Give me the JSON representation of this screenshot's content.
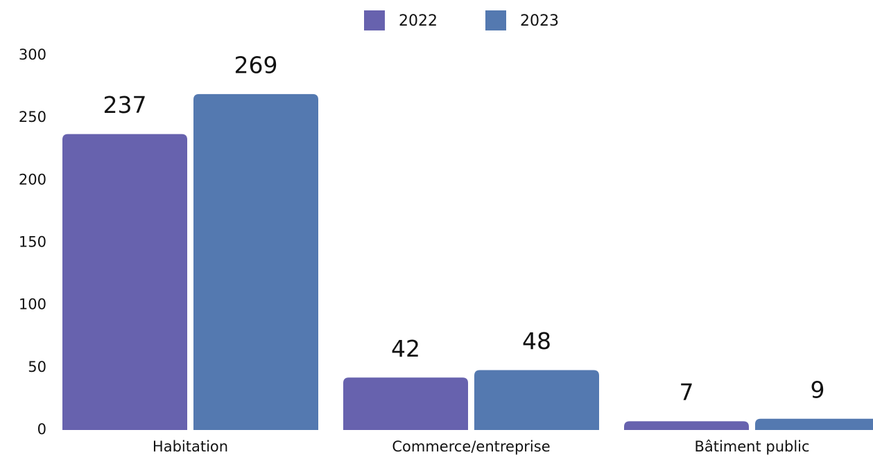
{
  "chart_data": {
    "type": "bar",
    "categories": [
      "Habitation",
      "Commerce/entreprise",
      "Bâtiment public"
    ],
    "series": [
      {
        "name": "2022",
        "color": "#6762ae",
        "values": [
          237,
          42,
          7
        ]
      },
      {
        "name": "2023",
        "color": "#5479b0",
        "values": [
          269,
          48,
          9
        ]
      }
    ],
    "ylim": [
      0,
      300
    ],
    "yticks": [
      0,
      50,
      100,
      150,
      200,
      250,
      300
    ],
    "grid": false,
    "legend": "top"
  }
}
